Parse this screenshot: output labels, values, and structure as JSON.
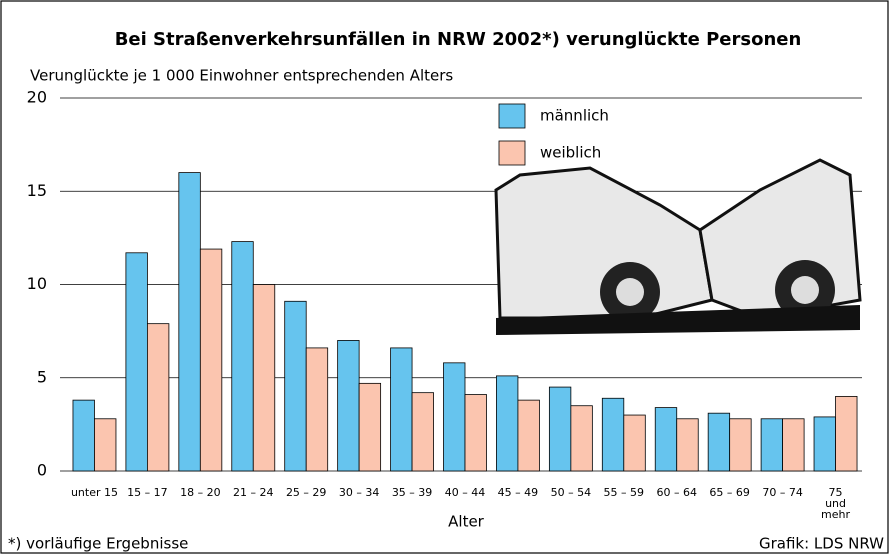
{
  "chart_data": {
    "type": "bar",
    "title": "Bei Straßenverkehrsunfällen in NRW 2002*) verunglückte Personen",
    "subtitle": "Verunglückte je 1 000 Einwohner entsprechenden Alters",
    "x_label": "Alter",
    "footnote": "*) vorläufige Ergebnisse",
    "source": "Grafik: LDS NRW",
    "categories": [
      "unter 15",
      "15 – 17",
      "18 – 20",
      "21 – 24",
      "25 – 29",
      "30 – 34",
      "35 – 39",
      "40 – 44",
      "45 – 49",
      "50 – 54",
      "55 – 59",
      "60 – 64",
      "65 – 69",
      "70 – 74",
      "75\nund\nmehr"
    ],
    "series": [
      {
        "name": "männlich",
        "color": "#66c4ee",
        "values": [
          3.8,
          11.7,
          16.0,
          12.3,
          9.1,
          7.0,
          6.6,
          5.8,
          5.1,
          4.5,
          3.9,
          3.4,
          3.1,
          2.8,
          2.9
        ]
      },
      {
        "name": "weiblich",
        "color": "#fbc5af",
        "values": [
          2.8,
          7.9,
          11.9,
          10.0,
          6.6,
          4.7,
          4.2,
          4.1,
          3.8,
          3.5,
          3.0,
          2.8,
          2.8,
          2.8,
          4.0
        ]
      }
    ],
    "ylim": [
      0,
      20
    ],
    "yticks": [
      0,
      5,
      10,
      15,
      20
    ],
    "grid": true
  }
}
